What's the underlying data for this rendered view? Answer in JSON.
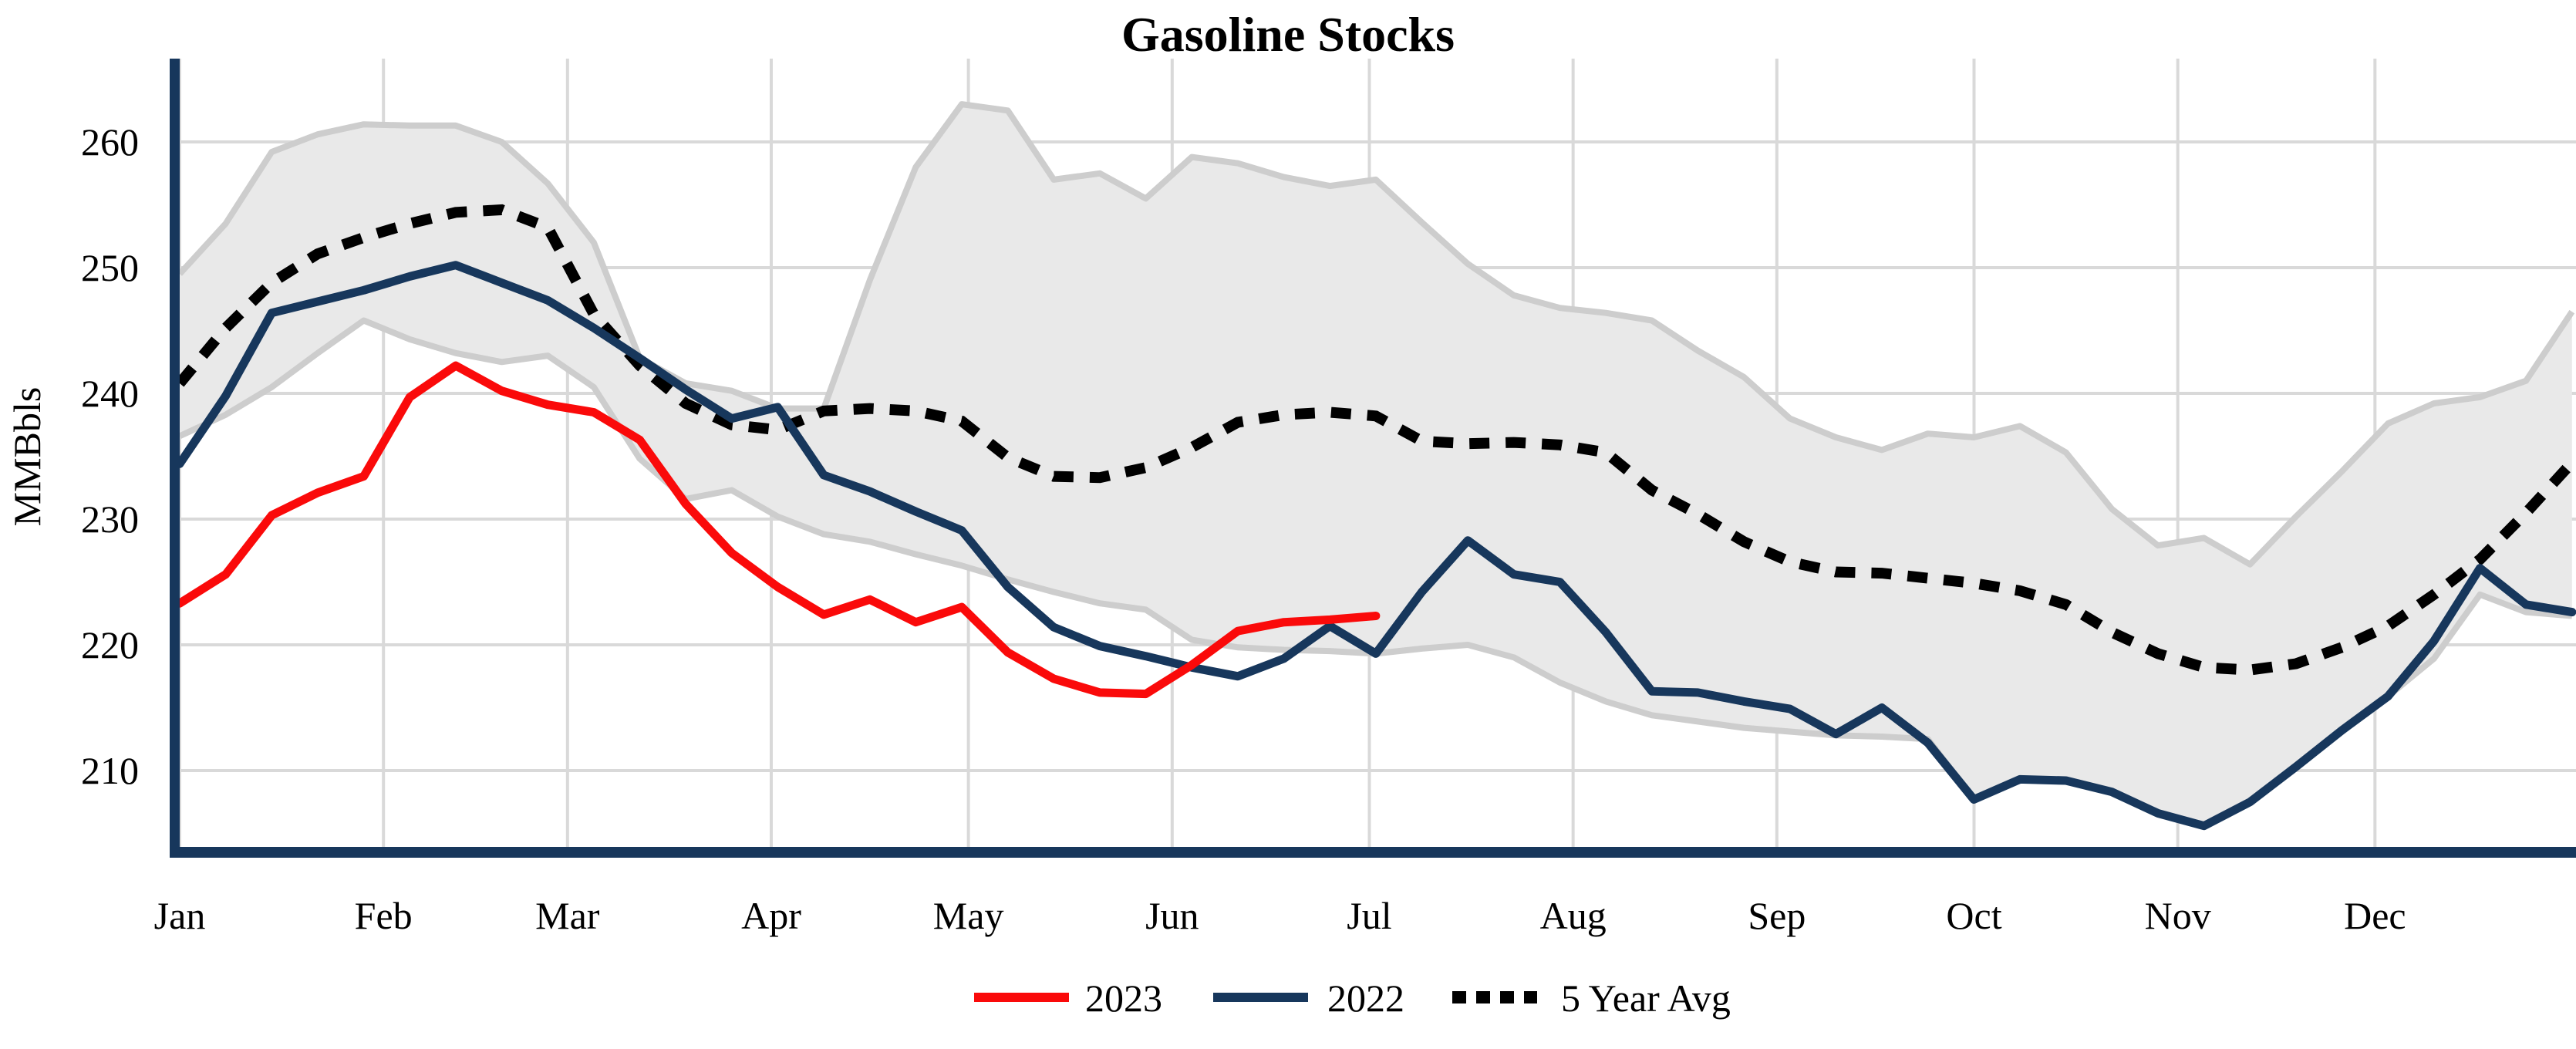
{
  "title": "Gasoline Stocks",
  "y_axis": {
    "label": "MMBbls",
    "ticks": [
      210,
      220,
      230,
      240,
      250,
      260
    ]
  },
  "x_axis": {
    "months": [
      "Jan",
      "Feb",
      "Mar",
      "Apr",
      "May",
      "Jun",
      "Jul",
      "Aug",
      "Sep",
      "Oct",
      "Nov",
      "Dec"
    ],
    "month_start_days": [
      0,
      31,
      59,
      90,
      120,
      151,
      181,
      212,
      243,
      273,
      304,
      334
    ]
  },
  "legend": [
    {
      "label": "2023",
      "color": "#fa0a0a",
      "style": "solid"
    },
    {
      "label": "2022",
      "color": "#17375c",
      "style": "solid"
    },
    {
      "label": "5 Year Avg",
      "color": "#000000",
      "style": "dashed"
    }
  ],
  "colors": {
    "red_2023": "#fa0a0a",
    "navy_2022": "#17375c",
    "avg_dotted": "#000000",
    "band_fill": "#e9e9e9",
    "band_edge": "#cdcdcd",
    "gridline": "#d9d9d9",
    "axis_spine": "#17375c"
  },
  "chart_data": {
    "type": "line",
    "title": "Gasoline Stocks",
    "ylabel": "MMBbls",
    "ylim": [
      203,
      266
    ],
    "x_unit": "weekly points starting at Jan, 7-day spacing",
    "grid": true,
    "legend_position": "bottom-center",
    "y_ticks": [
      210,
      220,
      230,
      240,
      250,
      260
    ],
    "series": [
      {
        "name": "2023",
        "color": "#fa0a0a",
        "style": "solid",
        "values": [
          223.3,
          225.6,
          230.3,
          232.1,
          233.4,
          239.7,
          242.2,
          240.2,
          239.1,
          238.5,
          236.3,
          231.2,
          227.3,
          224.6,
          222.4,
          223.6,
          221.8,
          223.0,
          219.4,
          217.3,
          216.2,
          216.1,
          218.4,
          221.1,
          221.8,
          222.0,
          222.3
        ]
      },
      {
        "name": "2022",
        "color": "#17375c",
        "style": "solid",
        "values": [
          234.4,
          239.8,
          246.4,
          247.3,
          248.2,
          249.3,
          250.2,
          248.8,
          247.4,
          245.2,
          242.8,
          240.3,
          238.0,
          238.9,
          233.5,
          232.2,
          230.6,
          229.1,
          224.6,
          221.4,
          219.9,
          219.1,
          218.2,
          217.5,
          218.9,
          221.5,
          219.3,
          224.2,
          228.3,
          225.6,
          225.0,
          221.0,
          216.3,
          216.2,
          215.5,
          214.9,
          212.9,
          215.0,
          212.2,
          207.7,
          209.3,
          209.2,
          208.3,
          206.6,
          205.6,
          207.5,
          210.3,
          213.2,
          215.9,
          220.3,
          226.1,
          223.2,
          222.6
        ]
      },
      {
        "name": "5 Year Avg",
        "color": "#000000",
        "style": "dashed",
        "values": [
          240.8,
          245.2,
          248.8,
          251.1,
          252.4,
          253.5,
          254.4,
          254.6,
          253.2,
          246.3,
          242.2,
          239.2,
          237.5,
          237.1,
          238.6,
          238.8,
          238.6,
          237.8,
          234.9,
          233.4,
          233.3,
          234.1,
          235.7,
          237.7,
          238.3,
          238.5,
          238.2,
          236.2,
          236.0,
          236.1,
          235.9,
          235.3,
          232.3,
          230.4,
          228.2,
          226.6,
          225.8,
          225.7,
          225.3,
          224.9,
          224.3,
          223.2,
          221.0,
          219.3,
          218.2,
          218.0,
          218.5,
          219.8,
          221.5,
          224.0,
          226.8,
          230.5,
          234.5
        ]
      }
    ],
    "band": {
      "name": "5 Year Range",
      "fill": "#e9e9e9",
      "edge": "#cdcdcd",
      "upper": [
        249.5,
        253.5,
        259.2,
        260.6,
        261.4,
        261.3,
        261.3,
        260.0,
        256.7,
        252.0,
        242.8,
        240.8,
        240.2,
        238.8,
        238.8,
        249.0,
        258.0,
        263.0,
        262.5,
        257.0,
        257.5,
        255.5,
        258.8,
        258.3,
        257.2,
        256.5,
        257.0,
        253.6,
        250.3,
        247.8,
        246.8,
        246.4,
        245.8,
        243.4,
        241.3,
        238.0,
        236.5,
        235.5,
        236.8,
        236.5,
        237.4,
        235.3,
        230.8,
        227.9,
        228.5,
        226.4,
        230.2,
        233.8,
        237.6,
        239.2,
        239.7,
        241.0,
        246.5
      ],
      "lower": [
        236.6,
        238.3,
        240.5,
        243.2,
        245.8,
        244.3,
        243.2,
        242.5,
        243.0,
        240.5,
        234.8,
        231.6,
        232.3,
        230.2,
        228.8,
        228.2,
        227.2,
        226.3,
        225.2,
        224.2,
        223.3,
        222.8,
        220.4,
        219.8,
        219.6,
        219.5,
        219.3,
        219.7,
        220.0,
        219.0,
        217.0,
        215.5,
        214.4,
        213.9,
        213.4,
        213.1,
        212.8,
        212.7,
        212.5,
        207.7,
        209.3,
        209.2,
        208.3,
        206.6,
        205.6,
        207.5,
        210.3,
        213.2,
        215.9,
        218.9,
        224.0,
        222.6,
        222.3
      ]
    }
  }
}
